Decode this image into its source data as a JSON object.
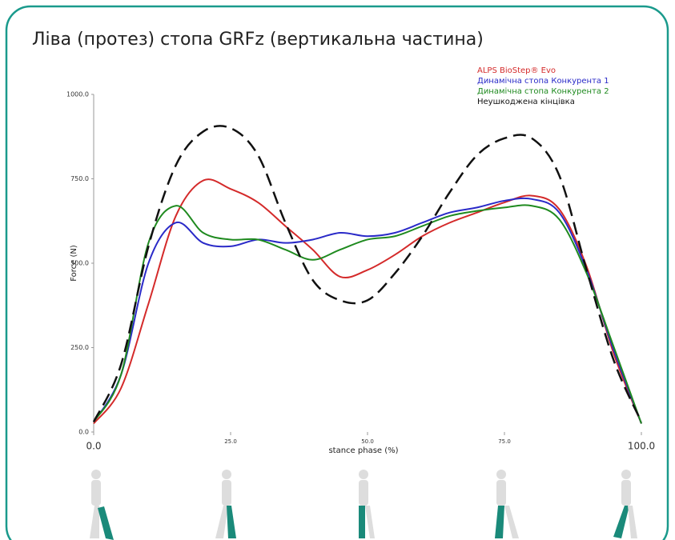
{
  "chart_data": {
    "type": "line",
    "title": "Ліва (протез) стопа GRFz (вертикальна частина)",
    "x_label": "stance phase (%)",
    "y_label": "Force (N)",
    "x": [
      0,
      5,
      10,
      15,
      20,
      25,
      30,
      35,
      40,
      45,
      50,
      55,
      60,
      65,
      70,
      75,
      80,
      85,
      90,
      95,
      100
    ],
    "series": [
      {
        "name": "ALPS BioStep® Evo",
        "color": "#d42a2a",
        "dashed": false,
        "values": [
          25,
          130,
          380,
          640,
          745,
          720,
          680,
          610,
          540,
          460,
          480,
          525,
          580,
          620,
          650,
          680,
          700,
          660,
          490,
          230,
          25
        ]
      },
      {
        "name": "Динамічна стопа Конкурента 1",
        "color": "#2a2ac8",
        "dashed": false,
        "values": [
          30,
          170,
          500,
          620,
          560,
          550,
          570,
          560,
          570,
          590,
          580,
          590,
          620,
          650,
          665,
          685,
          690,
          650,
          480,
          240,
          25
        ]
      },
      {
        "name": "Динамічна стопа Конкурента 2",
        "color": "#1f8a1f",
        "dashed": false,
        "values": [
          30,
          170,
          560,
          670,
          590,
          570,
          570,
          540,
          510,
          540,
          570,
          580,
          610,
          640,
          655,
          665,
          670,
          630,
          470,
          250,
          25
        ]
      },
      {
        "name": "Неушкоджена кінцівка",
        "color": "#111111",
        "dashed": true,
        "values": [
          30,
          200,
          550,
          790,
          890,
          900,
          820,
          620,
          450,
          390,
          390,
          470,
          580,
          710,
          820,
          870,
          870,
          760,
          480,
          210,
          30
        ]
      }
    ],
    "xlim": [
      0,
      100
    ],
    "xticks": [
      {
        "value": 0,
        "label": "0.0"
      },
      {
        "value": 25,
        "label": "25.0"
      },
      {
        "value": 50,
        "label": "50.0"
      },
      {
        "value": 75,
        "label": "75.0"
      },
      {
        "value": 100,
        "label": "100.0"
      }
    ],
    "ylim": [
      0,
      1000
    ],
    "yticks": [
      {
        "value": 0,
        "label": "0.0"
      },
      {
        "value": 250,
        "label": "250.0"
      },
      {
        "value": 500,
        "label": "500.0"
      },
      {
        "value": 750,
        "label": "750.0"
      },
      {
        "value": 1000,
        "label": "1000.0"
      }
    ],
    "legend": "top-right"
  }
}
